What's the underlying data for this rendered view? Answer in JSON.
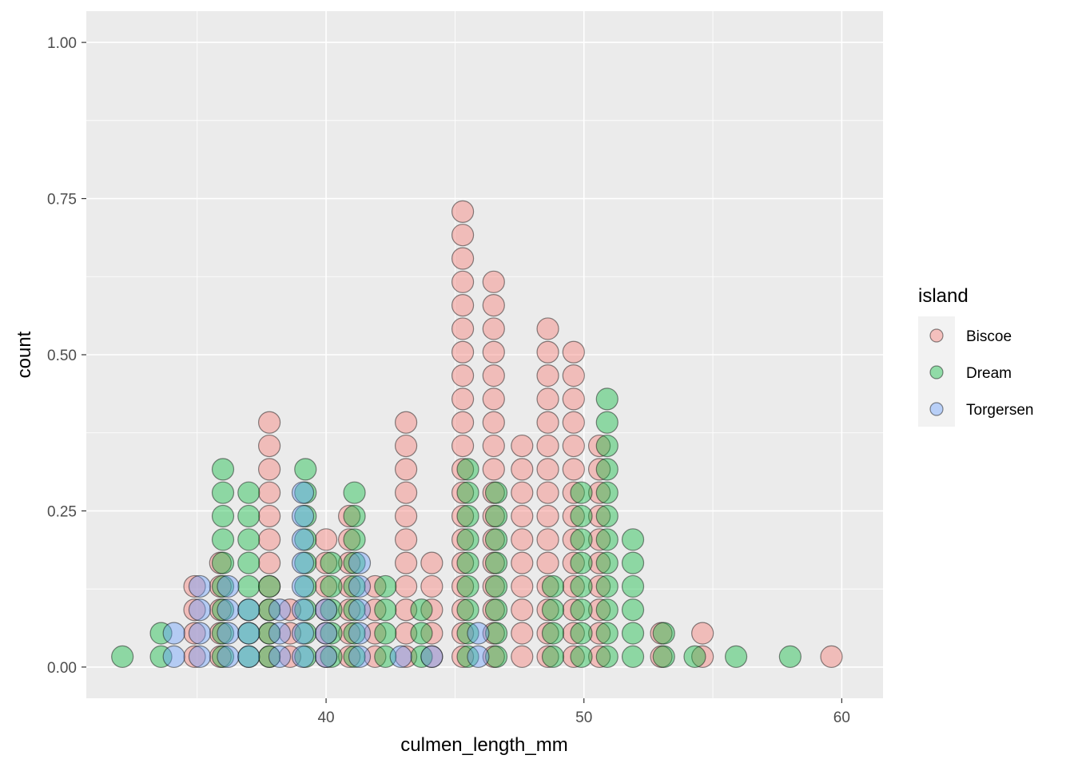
{
  "chart_data": {
    "type": "scatter",
    "subtype": "dotplot",
    "title": "",
    "xlabel": "culmen_length_mm",
    "ylabel": "count",
    "xlim": [
      30.7,
      61.6
    ],
    "ylim": [
      -0.05,
      1.05
    ],
    "x_ticks": [
      40,
      50,
      60
    ],
    "y_ticks": [
      0.0,
      0.25,
      0.5,
      0.75,
      1.0
    ],
    "x_tick_labels": [
      "40",
      "50",
      "60"
    ],
    "y_tick_labels": [
      "0.00",
      "0.25",
      "0.50",
      "0.75",
      "1.00"
    ],
    "grid": true,
    "panel_background": "#EBEBEB",
    "grid_color": "#FFFFFF",
    "legend": {
      "title": "island",
      "placement": "right",
      "entries": [
        "Biscoe",
        "Dream",
        "Torgersen"
      ]
    },
    "series": [
      {
        "name": "Biscoe",
        "color": "#F8766D",
        "stacks": [
          {
            "x": 34.9,
            "n": 4
          },
          {
            "x": 35.9,
            "n": 5
          },
          {
            "x": 37.8,
            "n": 11
          },
          {
            "x": 38.6,
            "n": 3
          },
          {
            "x": 40.0,
            "n": 6
          },
          {
            "x": 40.9,
            "n": 7
          },
          {
            "x": 41.9,
            "n": 4
          },
          {
            "x": 43.1,
            "n": 11
          },
          {
            "x": 44.1,
            "n": 5
          },
          {
            "x": 45.3,
            "n": 20
          },
          {
            "x": 46.5,
            "n": 17
          },
          {
            "x": 47.6,
            "n": 10
          },
          {
            "x": 48.6,
            "n": 15
          },
          {
            "x": 49.6,
            "n": 14
          },
          {
            "x": 50.6,
            "n": 10
          },
          {
            "x": 53.0,
            "n": 2
          },
          {
            "x": 54.6,
            "n": 2
          },
          {
            "x": 59.6,
            "n": 1
          }
        ]
      },
      {
        "name": "Dream",
        "color": "#00BA38",
        "stacks": [
          {
            "x": 32.1,
            "n": 1
          },
          {
            "x": 33.6,
            "n": 2
          },
          {
            "x": 36.0,
            "n": 9
          },
          {
            "x": 37.0,
            "n": 8
          },
          {
            "x": 37.8,
            "n": 4
          },
          {
            "x": 39.2,
            "n": 9
          },
          {
            "x": 40.2,
            "n": 5
          },
          {
            "x": 41.1,
            "n": 8
          },
          {
            "x": 42.3,
            "n": 4
          },
          {
            "x": 43.7,
            "n": 3
          },
          {
            "x": 45.5,
            "n": 9
          },
          {
            "x": 46.6,
            "n": 8
          },
          {
            "x": 48.8,
            "n": 4
          },
          {
            "x": 49.9,
            "n": 8
          },
          {
            "x": 50.9,
            "n": 12
          },
          {
            "x": 51.9,
            "n": 6
          },
          {
            "x": 53.1,
            "n": 2
          },
          {
            "x": 54.3,
            "n": 1
          },
          {
            "x": 55.9,
            "n": 1
          },
          {
            "x": 58.0,
            "n": 1
          }
        ]
      },
      {
        "name": "Torgersen",
        "color": "#619CFF",
        "stacks": [
          {
            "x": 34.1,
            "n": 2
          },
          {
            "x": 35.1,
            "n": 4
          },
          {
            "x": 36.2,
            "n": 4
          },
          {
            "x": 37.0,
            "n": 3
          },
          {
            "x": 38.2,
            "n": 3
          },
          {
            "x": 39.1,
            "n": 8
          },
          {
            "x": 40.0,
            "n": 3
          },
          {
            "x": 41.3,
            "n": 5
          },
          {
            "x": 42.9,
            "n": 1
          },
          {
            "x": 44.1,
            "n": 1
          },
          {
            "x": 45.9,
            "n": 2
          }
        ]
      }
    ]
  }
}
